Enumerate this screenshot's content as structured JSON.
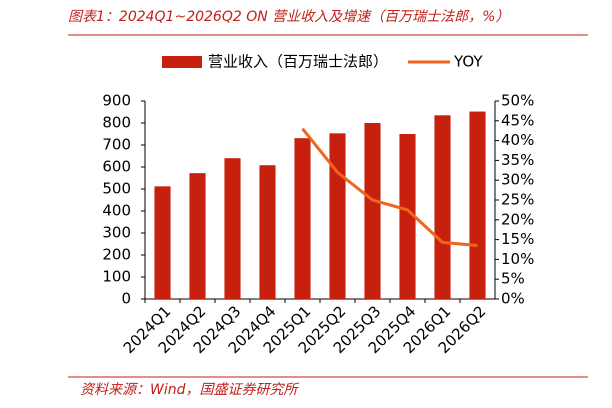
{
  "chart_data": {
    "type": "bar",
    "title": "图表1：2024Q1~2026Q2 ON 营业收入及增速（百万瑞士法郎，%）",
    "source": "资料来源：Wind，国盛证券研究所",
    "categories": [
      "2024Q1",
      "2024Q2",
      "2024Q3",
      "2024Q4",
      "2025Q1",
      "2025Q2",
      "2025Q3",
      "2025Q4",
      "2026Q1",
      "2026Q2"
    ],
    "series": [
      {
        "name": "营业收入（百万瑞士法郎）",
        "type": "bar",
        "color": "#c8200e",
        "values": [
          512,
          572,
          640,
          608,
          731,
          753,
          800,
          750,
          835,
          852
        ]
      },
      {
        "name": "YOY",
        "type": "line",
        "axis": "y2",
        "color": "#f0651e",
        "values": [
          null,
          null,
          null,
          null,
          43,
          32,
          25,
          22.5,
          14.3,
          13.5
        ]
      }
    ],
    "ylim": [
      0,
      900
    ],
    "yticks": [
      0,
      100,
      200,
      300,
      400,
      500,
      600,
      700,
      800,
      900
    ],
    "y2lim": [
      0,
      50
    ],
    "y2ticks": [
      {
        "value": 0,
        "label": "0%"
      },
      {
        "value": 5,
        "label": "5%"
      },
      {
        "value": 10,
        "label": "10%"
      },
      {
        "value": 15,
        "label": "15%"
      },
      {
        "value": 20,
        "label": "20%"
      },
      {
        "value": 25,
        "label": "25%"
      },
      {
        "value": 30,
        "label": "30%"
      },
      {
        "value": 35,
        "label": "35%"
      },
      {
        "value": 40,
        "label": "40%"
      },
      {
        "value": 45,
        "label": "45%"
      },
      {
        "value": 50,
        "label": "50%"
      }
    ],
    "legend": "top"
  }
}
